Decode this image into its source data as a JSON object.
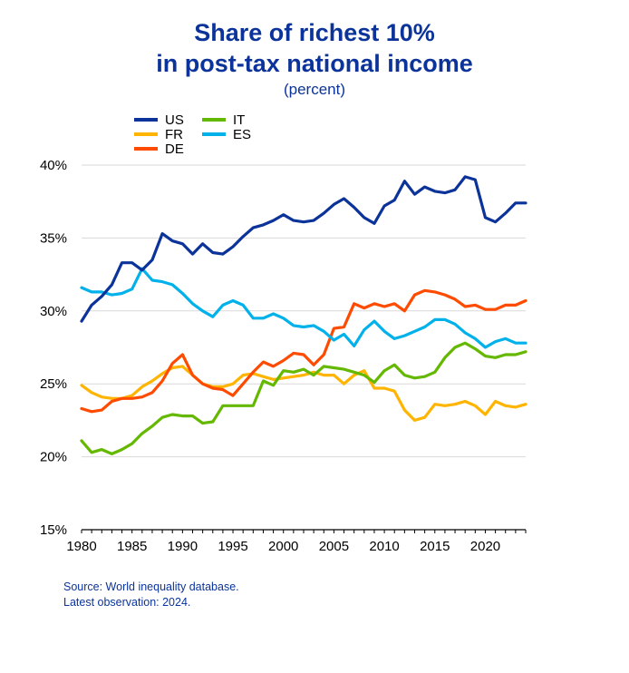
{
  "chart_data": {
    "type": "line",
    "title_line1": "Share of richest 10%",
    "title_line2": "in post-tax national income",
    "subtitle": "(percent)",
    "ylim": [
      15,
      40
    ],
    "y_ticks": [
      15,
      20,
      25,
      30,
      35,
      40
    ],
    "y_tick_labels": [
      "15%",
      "20%",
      "25%",
      "30%",
      "35%",
      "40%"
    ],
    "xlim": [
      1980,
      2024
    ],
    "x_ticks": [
      1980,
      1985,
      1990,
      1995,
      2000,
      2005,
      2010,
      2015,
      2020
    ],
    "x_tick_labels": [
      "1980",
      "1985",
      "1990",
      "1995",
      "2000",
      "2005",
      "2010",
      "2015",
      "2020"
    ],
    "grid": "horizontal",
    "legend_position": "top-left",
    "x": [
      1980,
      1981,
      1982,
      1983,
      1984,
      1985,
      1986,
      1987,
      1988,
      1989,
      1990,
      1991,
      1992,
      1993,
      1994,
      1995,
      1996,
      1997,
      1998,
      1999,
      2000,
      2001,
      2002,
      2003,
      2004,
      2005,
      2006,
      2007,
      2008,
      2009,
      2010,
      2011,
      2012,
      2013,
      2014,
      2015,
      2016,
      2017,
      2018,
      2019,
      2020,
      2021,
      2022,
      2023,
      2024
    ],
    "series": [
      {
        "name": "US",
        "color": "#0b3399",
        "values": [
          29.3,
          30.4,
          31.0,
          31.8,
          33.3,
          33.3,
          32.8,
          33.5,
          35.3,
          34.8,
          34.6,
          33.9,
          34.6,
          34.0,
          33.9,
          34.4,
          35.1,
          35.7,
          35.9,
          36.2,
          36.6,
          36.2,
          36.1,
          36.2,
          36.7,
          37.3,
          37.7,
          37.1,
          36.4,
          36.0,
          37.2,
          37.6,
          38.9,
          38.0,
          38.5,
          38.2,
          38.1,
          38.3,
          39.2,
          39.0,
          36.4,
          36.1,
          36.7,
          37.4,
          37.4
        ]
      },
      {
        "name": "FR",
        "color": "#ffb400",
        "values": [
          24.9,
          24.4,
          24.1,
          24.0,
          24.0,
          24.2,
          24.8,
          25.2,
          25.7,
          26.1,
          26.2,
          25.6,
          25.0,
          24.8,
          24.8,
          25.0,
          25.6,
          25.7,
          25.5,
          25.3,
          25.4,
          25.5,
          25.6,
          25.8,
          25.6,
          25.6,
          25.0,
          25.6,
          25.9,
          24.7,
          24.7,
          24.5,
          23.2,
          22.5,
          22.7,
          23.6,
          23.5,
          23.6,
          23.8,
          23.5,
          22.9,
          23.8,
          23.5,
          23.4,
          23.6
        ]
      },
      {
        "name": "DE",
        "color": "#ff4b00",
        "values": [
          23.3,
          23.1,
          23.2,
          23.8,
          24.0,
          24.0,
          24.1,
          24.4,
          25.2,
          26.4,
          27.0,
          25.6,
          25.0,
          24.7,
          24.6,
          24.2,
          25.0,
          25.8,
          26.5,
          26.2,
          26.6,
          27.1,
          27.0,
          26.3,
          27.0,
          28.8,
          28.9,
          30.5,
          30.2,
          30.5,
          30.3,
          30.5,
          30.0,
          31.1,
          31.4,
          31.3,
          31.1,
          30.8,
          30.3,
          30.4,
          30.1,
          30.1,
          30.4,
          30.4,
          30.7
        ]
      },
      {
        "name": "IT",
        "color": "#65b800",
        "values": [
          21.1,
          20.3,
          20.5,
          20.2,
          20.5,
          20.9,
          21.6,
          22.1,
          22.7,
          22.9,
          22.8,
          22.8,
          22.3,
          22.4,
          23.5,
          23.5,
          23.5,
          23.5,
          25.2,
          24.9,
          25.9,
          25.8,
          26.0,
          25.6,
          26.2,
          26.1,
          26.0,
          25.8,
          25.6,
          25.1,
          25.9,
          26.3,
          25.6,
          25.4,
          25.5,
          25.8,
          26.8,
          27.5,
          27.8,
          27.4,
          26.9,
          26.8,
          27.0,
          27.0,
          27.2
        ]
      },
      {
        "name": "ES",
        "color": "#00b1ea",
        "values": [
          31.6,
          31.3,
          31.3,
          31.1,
          31.2,
          31.5,
          32.9,
          32.1,
          32.0,
          31.8,
          31.2,
          30.5,
          30.0,
          29.6,
          30.4,
          30.7,
          30.4,
          29.5,
          29.5,
          29.8,
          29.5,
          29.0,
          28.9,
          29.0,
          28.6,
          28.0,
          28.4,
          27.6,
          28.7,
          29.3,
          28.6,
          28.1,
          28.3,
          28.6,
          28.9,
          29.4,
          29.4,
          29.1,
          28.5,
          28.1,
          27.5,
          27.9,
          28.1,
          27.8,
          27.8
        ]
      }
    ],
    "legend": [
      {
        "name": "US",
        "color": "#0b3399"
      },
      {
        "name": "FR",
        "color": "#ffb400"
      },
      {
        "name": "DE",
        "color": "#ff4b00"
      },
      {
        "name": "IT",
        "color": "#65b800"
      },
      {
        "name": "ES",
        "color": "#00b1ea"
      }
    ]
  },
  "footnotes": {
    "source": "Source: World inequality database.",
    "latest": "Latest observation: 2024."
  }
}
